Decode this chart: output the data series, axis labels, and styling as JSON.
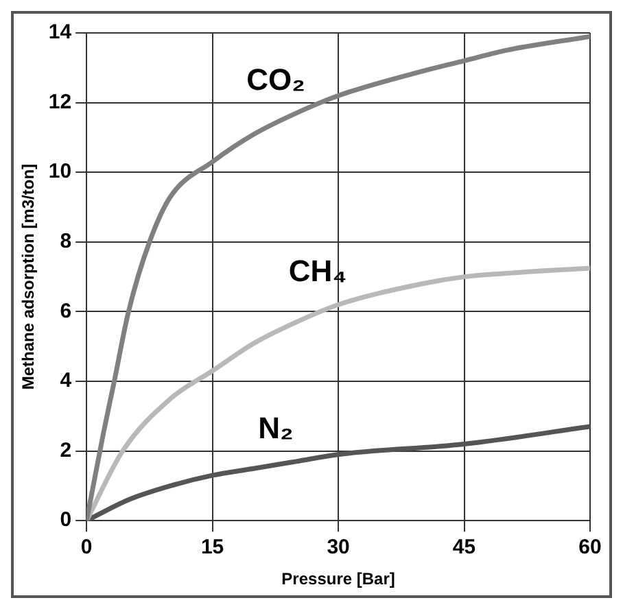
{
  "chart_data": {
    "type": "line",
    "xlabel": "Pressure [Bar]",
    "ylabel": "Methane adsorption [m3/ton]",
    "xlim": [
      0,
      60
    ],
    "xticks": [
      0,
      15,
      30,
      45,
      60
    ],
    "ylim": [
      0,
      14
    ],
    "yticks": [
      0,
      2,
      4,
      6,
      8,
      10,
      12,
      14
    ],
    "grid": true,
    "marker": "none",
    "line_style": "solid",
    "series": [
      {
        "name": "CO₂",
        "color": "#808080",
        "x": [
          0,
          2,
          3.3,
          5,
          7.5,
          10,
          15,
          20,
          25,
          30,
          40,
          45,
          50,
          60
        ],
        "values": [
          0,
          2.5,
          4,
          6,
          8,
          9.3,
          10.3,
          11.1,
          11.7,
          12.2,
          12.9,
          13.2,
          13.5,
          13.9
        ]
      },
      {
        "name": "CH₄",
        "color": "#b8b8b8",
        "x": [
          0,
          4.3,
          10,
          15,
          20,
          25,
          30,
          40,
          45,
          50,
          60
        ],
        "values": [
          0,
          2,
          3.5,
          4.3,
          5.1,
          5.7,
          6.2,
          6.8,
          7,
          7.1,
          7.25
        ]
      },
      {
        "name": "N₂",
        "color": "#555555",
        "x": [
          0,
          5,
          10,
          15,
          20,
          25,
          30,
          45,
          60
        ],
        "values": [
          0,
          0.6,
          1,
          1.3,
          1.5,
          1.7,
          1.9,
          2.2,
          2.7
        ]
      }
    ]
  }
}
